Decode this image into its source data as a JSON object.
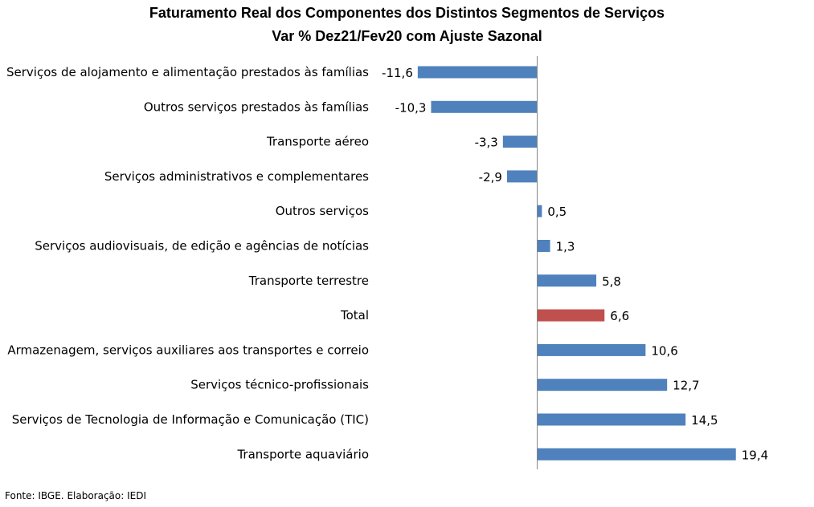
{
  "chart_data": {
    "type": "bar",
    "orientation": "horizontal",
    "title": "Faturamento Real dos Componentes dos Distintos Segmentos de Serviços",
    "subtitle": "Var % Dez21/Fev20 com Ajuste Sazonal",
    "categories": [
      "Serviços de alojamento e alimentação prestados às famílias",
      "Outros serviços prestados às famílias",
      "Transporte aéreo",
      "Serviços administrativos e complementares",
      "Outros serviços",
      "Serviços audiovisuais, de edição e agências de notícias",
      "Transporte terrestre",
      "Total",
      "Armazenagem, serviços auxiliares aos transportes e correio",
      "Serviços técnico-profissionais",
      "Serviços de Tecnologia de Informação e Comunicação (TIC)",
      "Transporte aquaviário"
    ],
    "values": [
      -11.6,
      -10.3,
      -3.3,
      -2.9,
      0.5,
      1.3,
      5.8,
      6.6,
      10.6,
      12.7,
      14.5,
      19.4
    ],
    "value_labels": [
      "-11,6",
      "-10,3",
      "-3,3",
      "-2,9",
      "0,5",
      "1,3",
      "5,8",
      "6,6",
      "10,6",
      "12,7",
      "14,5",
      "19,4"
    ],
    "highlight_category": "Total",
    "colors": {
      "default": "#4F81BD",
      "highlight": "#C0504D"
    },
    "xlabel": "",
    "ylabel": "",
    "legend": "none",
    "grid": false
  },
  "source": "Fonte: IBGE. Elaboração: IEDI"
}
